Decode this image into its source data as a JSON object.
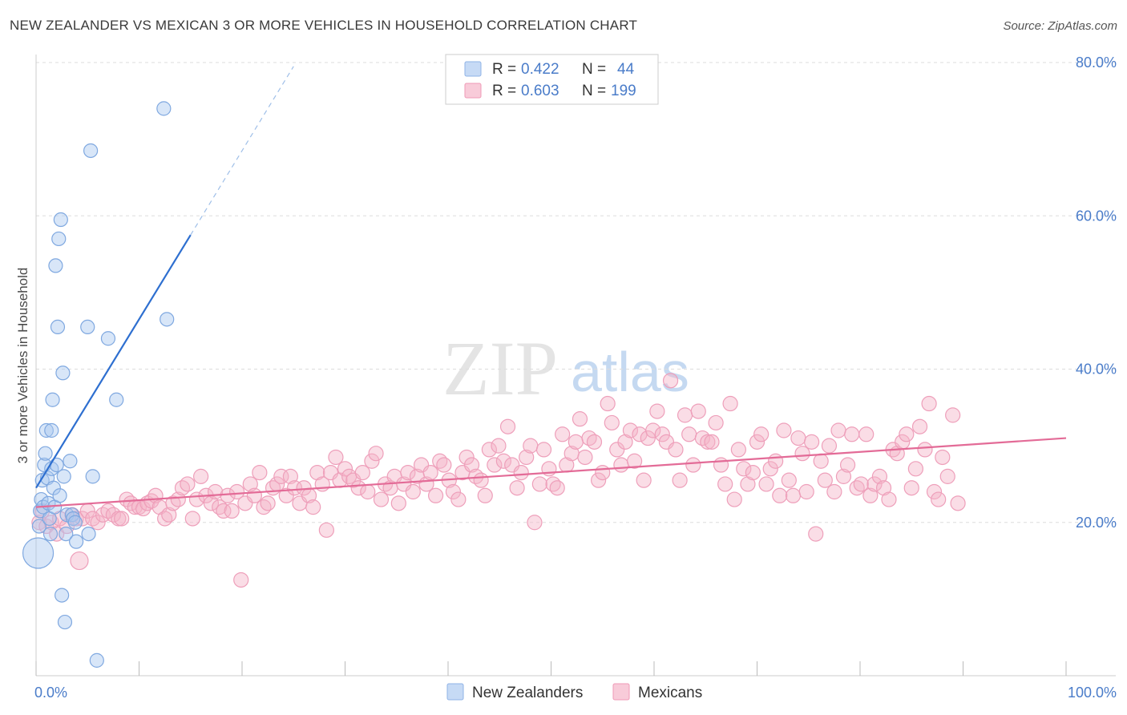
{
  "header": {
    "title": "NEW ZEALANDER VS MEXICAN 3 OR MORE VEHICLES IN HOUSEHOLD CORRELATION CHART",
    "source": "Source: ZipAtlas.com"
  },
  "colors": {
    "blue": "#a9c8f0",
    "blue_line": "#2e6fd0",
    "pink": "#f4b3c8",
    "pink_line": "#e36b97",
    "grid": "#dddddd",
    "tick_text": "#4a7cc9"
  },
  "watermark": {
    "zip": "ZIP",
    "atlas": "atlas"
  },
  "legend": {
    "r_label": "R =",
    "n_label": "N =",
    "rows": [
      {
        "series": "New Zealanders",
        "r": "0.422",
        "n": "44"
      },
      {
        "series": "Mexicans",
        "r": "0.603",
        "n": "199"
      }
    ]
  },
  "chart_data": {
    "type": "scatter",
    "title": "NEW ZEALANDER VS MEXICAN 3 OR MORE VEHICLES IN HOUSEHOLD CORRELATION CHART",
    "xlabel": "",
    "ylabel": "3 or more Vehicles in Household",
    "xlim": [
      0,
      100
    ],
    "ylim": [
      0,
      80
    ],
    "x_tick_labels": [
      "0.0%",
      "100.0%"
    ],
    "y_tick_labels": [
      "20.0%",
      "40.0%",
      "60.0%",
      "80.0%"
    ],
    "y_ticks": [
      20,
      40,
      60,
      80
    ],
    "grid": true,
    "legend_position": "top-center",
    "series": [
      {
        "name": "New Zealanders",
        "color": "#a9c8f0",
        "trend": {
          "x": [
            0,
            15
          ],
          "y": [
            24.5,
            57.5
          ],
          "dashed_to": [
            25,
            79.5
          ]
        },
        "points": [
          [
            0.2,
            16.0
          ],
          [
            0.3,
            19.5
          ],
          [
            0.4,
            21.5
          ],
          [
            0.5,
            23.0
          ],
          [
            0.6,
            25.5
          ],
          [
            0.7,
            22.0
          ],
          [
            0.8,
            27.5
          ],
          [
            0.9,
            29.0
          ],
          [
            1.0,
            32.0
          ],
          [
            1.1,
            25.8
          ],
          [
            1.2,
            22.5
          ],
          [
            1.3,
            20.5
          ],
          [
            1.4,
            18.5
          ],
          [
            1.5,
            27.0
          ],
          [
            1.6,
            36.0
          ],
          [
            1.7,
            24.5
          ],
          [
            1.8,
            22.0
          ],
          [
            1.9,
            53.5
          ],
          [
            2.0,
            27.5
          ],
          [
            2.1,
            45.5
          ],
          [
            2.2,
            57.0
          ],
          [
            2.3,
            23.5
          ],
          [
            2.4,
            59.5
          ],
          [
            2.5,
            10.5
          ],
          [
            2.6,
            39.5
          ],
          [
            2.7,
            26.0
          ],
          [
            2.8,
            7.0
          ],
          [
            2.9,
            18.5
          ],
          [
            3.0,
            21.0
          ],
          [
            3.3,
            28.0
          ],
          [
            3.5,
            21.0
          ],
          [
            3.6,
            20.5
          ],
          [
            3.8,
            20.0
          ],
          [
            3.9,
            17.5
          ],
          [
            5.0,
            45.5
          ],
          [
            5.1,
            18.5
          ],
          [
            5.3,
            68.5
          ],
          [
            5.5,
            26.0
          ],
          [
            5.9,
            2.0
          ],
          [
            7.0,
            44.0
          ],
          [
            7.8,
            36.0
          ],
          [
            12.4,
            74.0
          ],
          [
            12.7,
            46.5
          ],
          [
            1.5,
            32.0
          ]
        ]
      },
      {
        "name": "Mexicans",
        "color": "#f4b3c8",
        "trend": {
          "x": [
            0,
            100
          ],
          "y": [
            22.0,
            31.0
          ]
        },
        "points": [
          [
            0.3,
            20.0
          ],
          [
            0.6,
            21.5
          ],
          [
            1.0,
            19.5
          ],
          [
            1.5,
            20.0
          ],
          [
            2.0,
            18.5
          ],
          [
            2.3,
            20.5
          ],
          [
            3.0,
            19.5
          ],
          [
            3.5,
            21.0
          ],
          [
            3.9,
            20.5
          ],
          [
            4.2,
            15.0
          ],
          [
            4.5,
            20.5
          ],
          [
            5.0,
            21.5
          ],
          [
            5.5,
            20.5
          ],
          [
            6.0,
            20.0
          ],
          [
            6.5,
            21.0
          ],
          [
            7.0,
            21.5
          ],
          [
            7.5,
            21.0
          ],
          [
            8.0,
            20.5
          ],
          [
            8.3,
            20.5
          ],
          [
            8.8,
            23.0
          ],
          [
            9.2,
            22.5
          ],
          [
            9.6,
            22.0
          ],
          [
            10.0,
            22.0
          ],
          [
            10.4,
            21.8
          ],
          [
            10.8,
            22.5
          ],
          [
            11.2,
            22.8
          ],
          [
            11.6,
            23.5
          ],
          [
            12.0,
            22.0
          ],
          [
            12.5,
            20.5
          ],
          [
            12.9,
            21.0
          ],
          [
            13.3,
            22.5
          ],
          [
            13.8,
            23.0
          ],
          [
            14.2,
            24.5
          ],
          [
            14.7,
            25.0
          ],
          [
            15.2,
            20.5
          ],
          [
            15.6,
            23.0
          ],
          [
            16.0,
            26.0
          ],
          [
            16.5,
            23.5
          ],
          [
            17.0,
            22.5
          ],
          [
            17.4,
            24.0
          ],
          [
            17.8,
            22.0
          ],
          [
            18.2,
            21.5
          ],
          [
            18.6,
            23.5
          ],
          [
            19.0,
            21.5
          ],
          [
            19.5,
            24.0
          ],
          [
            19.9,
            12.5
          ],
          [
            20.3,
            22.5
          ],
          [
            20.8,
            25.0
          ],
          [
            21.2,
            23.5
          ],
          [
            21.7,
            26.5
          ],
          [
            22.1,
            22.0
          ],
          [
            22.5,
            22.5
          ],
          [
            23.0,
            24.5
          ],
          [
            23.4,
            25.0
          ],
          [
            23.8,
            26.0
          ],
          [
            24.3,
            23.5
          ],
          [
            24.7,
            26.0
          ],
          [
            25.1,
            24.5
          ],
          [
            25.6,
            22.5
          ],
          [
            26.0,
            24.5
          ],
          [
            26.5,
            23.5
          ],
          [
            26.9,
            22.0
          ],
          [
            27.3,
            26.5
          ],
          [
            27.8,
            25.0
          ],
          [
            28.2,
            19.0
          ],
          [
            28.6,
            26.5
          ],
          [
            29.1,
            28.5
          ],
          [
            29.5,
            25.5
          ],
          [
            30.0,
            27.0
          ],
          [
            30.4,
            26.0
          ],
          [
            30.8,
            25.5
          ],
          [
            31.3,
            24.5
          ],
          [
            31.7,
            26.5
          ],
          [
            32.2,
            24.0
          ],
          [
            32.6,
            28.0
          ],
          [
            33.0,
            29.0
          ],
          [
            33.5,
            23.0
          ],
          [
            33.9,
            25.0
          ],
          [
            34.4,
            24.5
          ],
          [
            34.8,
            26.0
          ],
          [
            35.2,
            22.5
          ],
          [
            35.7,
            25.0
          ],
          [
            36.1,
            26.5
          ],
          [
            36.6,
            24.0
          ],
          [
            37.0,
            26.0
          ],
          [
            37.4,
            27.5
          ],
          [
            37.9,
            25.0
          ],
          [
            38.3,
            26.5
          ],
          [
            38.8,
            23.5
          ],
          [
            39.2,
            28.0
          ],
          [
            39.6,
            27.5
          ],
          [
            40.1,
            25.5
          ],
          [
            40.5,
            24.0
          ],
          [
            41.0,
            23.0
          ],
          [
            41.4,
            26.5
          ],
          [
            41.8,
            28.5
          ],
          [
            42.3,
            27.5
          ],
          [
            42.7,
            26.0
          ],
          [
            43.2,
            25.5
          ],
          [
            43.6,
            23.5
          ],
          [
            44.0,
            29.5
          ],
          [
            44.5,
            27.5
          ],
          [
            44.9,
            30.0
          ],
          [
            45.4,
            28.0
          ],
          [
            45.8,
            32.5
          ],
          [
            46.2,
            27.5
          ],
          [
            46.7,
            24.5
          ],
          [
            47.1,
            26.5
          ],
          [
            47.6,
            28.5
          ],
          [
            48.0,
            30.0
          ],
          [
            48.4,
            20.0
          ],
          [
            48.9,
            25.0
          ],
          [
            49.3,
            29.5
          ],
          [
            49.8,
            27.0
          ],
          [
            50.2,
            25.0
          ],
          [
            50.6,
            24.5
          ],
          [
            51.1,
            31.5
          ],
          [
            51.5,
            27.5
          ],
          [
            52.0,
            29.0
          ],
          [
            52.4,
            30.5
          ],
          [
            52.8,
            33.5
          ],
          [
            53.3,
            28.5
          ],
          [
            53.7,
            31.0
          ],
          [
            54.2,
            30.5
          ],
          [
            54.6,
            25.5
          ],
          [
            55.0,
            26.5
          ],
          [
            55.5,
            35.5
          ],
          [
            55.9,
            33.0
          ],
          [
            56.4,
            29.5
          ],
          [
            56.8,
            27.5
          ],
          [
            57.2,
            30.5
          ],
          [
            57.7,
            32.0
          ],
          [
            58.1,
            28.0
          ],
          [
            58.6,
            31.5
          ],
          [
            59.0,
            25.5
          ],
          [
            59.4,
            31.0
          ],
          [
            59.9,
            32.0
          ],
          [
            60.3,
            34.5
          ],
          [
            60.8,
            31.5
          ],
          [
            61.2,
            30.5
          ],
          [
            61.6,
            38.5
          ],
          [
            62.1,
            29.5
          ],
          [
            62.5,
            25.5
          ],
          [
            63.0,
            34.0
          ],
          [
            63.4,
            31.5
          ],
          [
            63.8,
            27.5
          ],
          [
            64.3,
            34.5
          ],
          [
            64.7,
            31.0
          ],
          [
            65.2,
            30.5
          ],
          [
            65.6,
            30.5
          ],
          [
            66.0,
            33.0
          ],
          [
            66.5,
            27.5
          ],
          [
            66.9,
            25.0
          ],
          [
            67.4,
            35.5
          ],
          [
            67.8,
            23.0
          ],
          [
            68.2,
            29.5
          ],
          [
            68.7,
            27.0
          ],
          [
            69.1,
            25.0
          ],
          [
            69.6,
            26.5
          ],
          [
            70.0,
            30.5
          ],
          [
            70.4,
            31.5
          ],
          [
            70.9,
            25.0
          ],
          [
            71.3,
            27.0
          ],
          [
            71.8,
            28.0
          ],
          [
            72.2,
            23.5
          ],
          [
            72.6,
            32.0
          ],
          [
            73.1,
            25.5
          ],
          [
            73.5,
            23.5
          ],
          [
            74.0,
            31.0
          ],
          [
            74.4,
            29.0
          ],
          [
            74.8,
            24.0
          ],
          [
            75.3,
            30.5
          ],
          [
            75.7,
            18.5
          ],
          [
            76.2,
            28.0
          ],
          [
            76.6,
            25.5
          ],
          [
            77.0,
            30.0
          ],
          [
            77.5,
            24.0
          ],
          [
            77.9,
            32.0
          ],
          [
            78.4,
            26.0
          ],
          [
            78.8,
            27.5
          ],
          [
            79.2,
            31.5
          ],
          [
            79.7,
            24.5
          ],
          [
            80.1,
            25.0
          ],
          [
            80.6,
            31.5
          ],
          [
            81.0,
            23.5
          ],
          [
            81.4,
            25.0
          ],
          [
            81.9,
            26.0
          ],
          [
            82.3,
            24.5
          ],
          [
            82.8,
            23.0
          ],
          [
            83.2,
            29.5
          ],
          [
            83.6,
            29.0
          ],
          [
            84.1,
            30.5
          ],
          [
            84.5,
            31.5
          ],
          [
            85.0,
            24.5
          ],
          [
            85.4,
            27.0
          ],
          [
            85.8,
            32.5
          ],
          [
            86.3,
            29.5
          ],
          [
            86.7,
            35.5
          ],
          [
            87.2,
            24.0
          ],
          [
            87.6,
            23.0
          ],
          [
            88.0,
            28.5
          ],
          [
            88.5,
            26.0
          ],
          [
            89.0,
            34.0
          ],
          [
            89.5,
            22.5
          ]
        ]
      }
    ]
  },
  "bottom_legend": [
    {
      "label": "New Zealanders",
      "color": "#a9c8f0"
    },
    {
      "label": "Mexicans",
      "color": "#f4b3c8"
    }
  ]
}
